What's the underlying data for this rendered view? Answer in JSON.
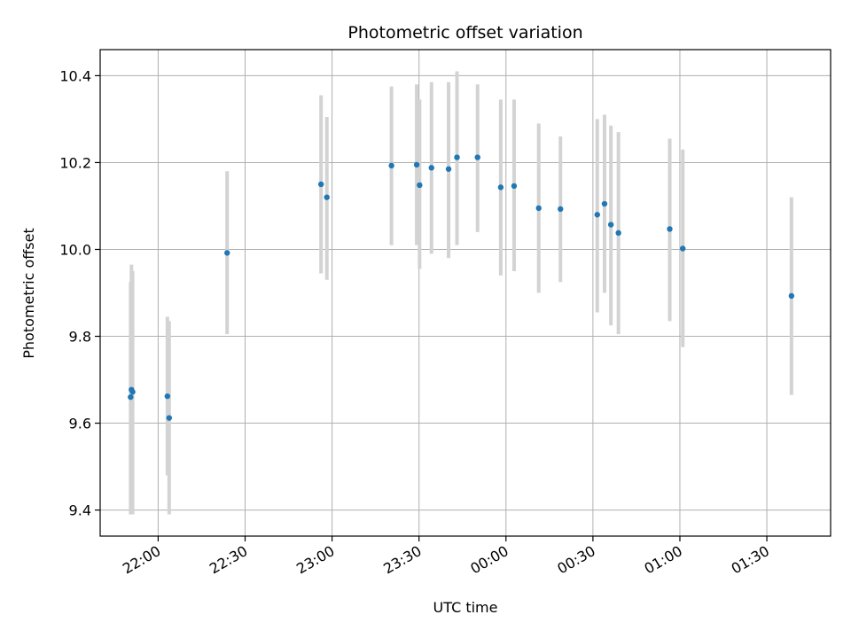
{
  "chart_data": {
    "type": "scatter",
    "title": "Photometric offset variation",
    "xlabel": "UTC time",
    "ylabel": "Photometric offset",
    "xlim": [
      "21:40",
      "01:52"
    ],
    "ylim": [
      9.34,
      10.46
    ],
    "x_ticks": [
      "22:00",
      "22:30",
      "23:00",
      "23:30",
      "00:00",
      "00:30",
      "01:00",
      "01:30"
    ],
    "y_ticks": [
      9.4,
      9.6,
      9.8,
      10.0,
      10.2,
      10.4
    ],
    "grid": true,
    "colors": {
      "points": "#1f77b4",
      "errorbars": "#d3d3d3",
      "grid": "#b0b0b0"
    },
    "series": [
      {
        "points": [
          {
            "t": "21:50.5",
            "y": 9.66,
            "lo": 9.39,
            "hi": 9.925
          },
          {
            "t": "21:50.8",
            "y": 9.677,
            "lo": 9.39,
            "hi": 9.965
          },
          {
            "t": "21:51.2",
            "y": 9.672,
            "lo": 9.39,
            "hi": 9.95
          },
          {
            "t": "22:03.2",
            "y": 9.662,
            "lo": 9.48,
            "hi": 9.845
          },
          {
            "t": "22:03.8",
            "y": 9.612,
            "lo": 9.39,
            "hi": 9.835
          },
          {
            "t": "22:23.8",
            "y": 9.992,
            "lo": 9.805,
            "hi": 10.18
          },
          {
            "t": "22:56.2",
            "y": 10.15,
            "lo": 9.945,
            "hi": 10.355
          },
          {
            "t": "22:58.2",
            "y": 10.12,
            "lo": 9.93,
            "hi": 10.305
          },
          {
            "t": "23:20.5",
            "y": 10.193,
            "lo": 10.01,
            "hi": 10.375
          },
          {
            "t": "23:29.2",
            "y": 10.195,
            "lo": 10.01,
            "hi": 10.38
          },
          {
            "t": "23:30.2",
            "y": 10.148,
            "lo": 9.955,
            "hi": 10.345
          },
          {
            "t": "23:34.3",
            "y": 10.188,
            "lo": 9.99,
            "hi": 10.385
          },
          {
            "t": "23:40.2",
            "y": 10.185,
            "lo": 9.98,
            "hi": 10.385
          },
          {
            "t": "23:43.1",
            "y": 10.212,
            "lo": 10.01,
            "hi": 10.41
          },
          {
            "t": "23:50.2",
            "y": 10.212,
            "lo": 10.04,
            "hi": 10.38
          },
          {
            "t": "23:58.2",
            "y": 10.143,
            "lo": 9.94,
            "hi": 10.345
          },
          {
            "t": "00:02.8",
            "y": 10.146,
            "lo": 9.95,
            "hi": 10.345
          },
          {
            "t": "00:11.3",
            "y": 10.095,
            "lo": 9.9,
            "hi": 10.29
          },
          {
            "t": "00:18.8",
            "y": 10.093,
            "lo": 9.925,
            "hi": 10.26
          },
          {
            "t": "00:31.5",
            "y": 10.08,
            "lo": 9.855,
            "hi": 10.3
          },
          {
            "t": "00:34.0",
            "y": 10.105,
            "lo": 9.9,
            "hi": 10.31
          },
          {
            "t": "00:36.2",
            "y": 10.057,
            "lo": 9.825,
            "hi": 10.285
          },
          {
            "t": "00:38.8",
            "y": 10.038,
            "lo": 9.805,
            "hi": 10.27
          },
          {
            "t": "00:56.5",
            "y": 10.047,
            "lo": 9.835,
            "hi": 10.255
          },
          {
            "t": "01:01.0",
            "y": 10.002,
            "lo": 9.775,
            "hi": 10.23
          },
          {
            "t": "01:38.5",
            "y": 9.893,
            "lo": 9.665,
            "hi": 10.12
          }
        ]
      }
    ]
  }
}
